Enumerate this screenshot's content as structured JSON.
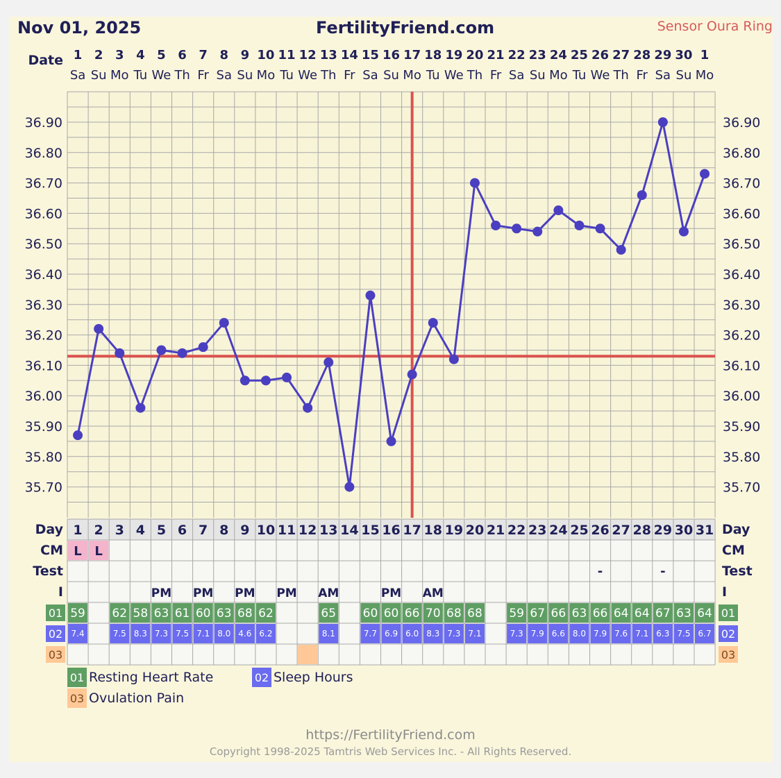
{
  "header": {
    "date_label": "Nov 01, 2025",
    "site": "FertilityFriend.com",
    "sensor": "Sensor Oura Ring"
  },
  "labels": {
    "date": "Date",
    "day": "Day",
    "cm": "CM",
    "test": "Test",
    "i": "I"
  },
  "colors": {
    "line": "#4a3fc0",
    "coverline": "#d9534f",
    "hr": "#5f9e63",
    "sleep": "#6a6bef",
    "ovulation": "#ffc896",
    "cm": "#f3b4cc"
  },
  "chart_data": {
    "type": "line",
    "title": "",
    "x_dates": [
      "1",
      "2",
      "3",
      "4",
      "5",
      "6",
      "7",
      "8",
      "9",
      "10",
      "11",
      "12",
      "13",
      "14",
      "15",
      "16",
      "17",
      "18",
      "19",
      "20",
      "21",
      "22",
      "23",
      "24",
      "25",
      "26",
      "27",
      "28",
      "29",
      "30",
      "1"
    ],
    "weekdays": [
      "Sa",
      "Su",
      "Mo",
      "Tu",
      "We",
      "Th",
      "Fr",
      "Sa",
      "Su",
      "Mo",
      "Tu",
      "We",
      "Th",
      "Fr",
      "Sa",
      "Su",
      "Mo",
      "Tu",
      "We",
      "Th",
      "Fr",
      "Sa",
      "Su",
      "Mo",
      "Tu",
      "We",
      "Th",
      "Fr",
      "Sa",
      "Su",
      "Mo"
    ],
    "cycle_days": [
      1,
      2,
      3,
      4,
      5,
      6,
      7,
      8,
      9,
      10,
      11,
      12,
      13,
      14,
      15,
      16,
      17,
      18,
      19,
      20,
      21,
      22,
      23,
      24,
      25,
      26,
      27,
      28,
      29,
      30,
      31
    ],
    "temperatures": [
      35.87,
      36.22,
      36.14,
      35.96,
      36.15,
      36.14,
      36.16,
      36.24,
      36.05,
      36.05,
      36.06,
      35.96,
      36.11,
      35.7,
      36.33,
      35.85,
      36.07,
      36.24,
      36.12,
      36.7,
      36.56,
      36.55,
      36.54,
      36.61,
      36.56,
      36.55,
      36.48,
      36.66,
      36.9,
      36.54,
      36.73
    ],
    "y_ticks": [
      "36.90",
      "36.80",
      "36.70",
      "36.60",
      "36.50",
      "36.40",
      "36.30",
      "36.20",
      "36.10",
      "36.00",
      "35.90",
      "35.80",
      "35.70"
    ],
    "ylim": [
      35.65,
      37.05
    ],
    "coverline": 36.13,
    "ovulation_day": 17,
    "grid": true
  },
  "rows": {
    "cm": [
      "L",
      "L",
      "",
      "",
      "",
      "",
      "",
      "",
      "",
      "",
      "",
      "",
      "",
      "",
      "",
      "",
      "",
      "",
      "",
      "",
      "",
      "",
      "",
      "",
      "",
      "",
      "",
      "",
      "",
      "",
      ""
    ],
    "test": [
      "",
      "",
      "",
      "",
      "",
      "",
      "",
      "",
      "",
      "",
      "",
      "",
      "",
      "",
      "",
      "",
      "",
      "",
      "",
      "",
      "",
      "",
      "",
      "",
      "",
      "-",
      "",
      "",
      "-",
      "",
      ""
    ],
    "intercourse": [
      "",
      "",
      "",
      "",
      "PM",
      "",
      "PM",
      "",
      "PM",
      "",
      "PM",
      "",
      "AM",
      "",
      "",
      "PM",
      "",
      "AM",
      "",
      "",
      "",
      "",
      "",
      "",
      "",
      "",
      "",
      "",
      "",
      "",
      ""
    ],
    "heart_rate": [
      "59",
      "",
      "62",
      "58",
      "63",
      "61",
      "60",
      "63",
      "68",
      "62",
      "",
      "",
      "65",
      "",
      "60",
      "60",
      "66",
      "70",
      "68",
      "68",
      "",
      "59",
      "67",
      "66",
      "63",
      "66",
      "64",
      "64",
      "67",
      "63",
      "64"
    ],
    "sleep": [
      "7.4",
      "",
      "7.5",
      "8.3",
      "7.3",
      "7.5",
      "7.1",
      "8.0",
      "4.6",
      "6.2",
      "",
      "",
      "8.1",
      "",
      "7.7",
      "6.9",
      "6.0",
      "8.3",
      "7.3",
      "7.1",
      "",
      "7.3",
      "7.9",
      "6.6",
      "8.0",
      "7.9",
      "7.6",
      "7.1",
      "6.3",
      "7.5",
      "6.7"
    ],
    "ovulation_pain": [
      12
    ]
  },
  "legend": [
    {
      "code": "01",
      "label": "Resting Heart Rate"
    },
    {
      "code": "02",
      "label": "Sleep Hours"
    },
    {
      "code": "03",
      "label": "Ovulation Pain"
    }
  ],
  "footer": {
    "url": "https://FertilityFriend.com",
    "copyright": "Copyright 1998-2025 Tamtris Web Services Inc. - All Rights Reserved."
  }
}
